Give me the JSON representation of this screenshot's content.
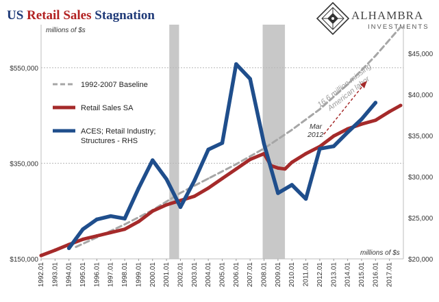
{
  "title": {
    "part1": "US ",
    "part2": "Retail Sales",
    "part3": " Stagnation",
    "color_main": "#1f3a78",
    "color_accent": "#b22222"
  },
  "logo": {
    "name": "ALHAMBRA",
    "sub": "INVESTMENTS",
    "icon": "diamond-lattice-icon"
  },
  "annotations": {
    "unit_left": "millions of $s",
    "unit_bottom": "millions of $s",
    "missing_line1": "16.6 million missing",
    "missing_line2": "American labor",
    "mar_line1": "Mar",
    "mar_line2": "2012"
  },
  "chart_data": {
    "type": "line",
    "x_categories": [
      "1992.01",
      "1993.01",
      "1994.01",
      "1995.01",
      "1996.01",
      "1997.01",
      "1998.01",
      "1999.01",
      "2000.01",
      "2001.01",
      "2002.01",
      "2003.01",
      "2004.01",
      "2005.01",
      "2006.01",
      "2007.01",
      "2008.01",
      "2009.01",
      "2010.01",
      "2011.01",
      "2012.01",
      "2013.01",
      "2014.01",
      "2015.01",
      "2016.01",
      "2017.01"
    ],
    "y_left": {
      "ticks": [
        150000,
        350000,
        550000
      ],
      "tick_labels": [
        "$150,000",
        "$350,000",
        "$550,000"
      ],
      "range": [
        150000,
        640000
      ]
    },
    "y_right": {
      "ticks": [
        20000,
        25000,
        30000,
        35000,
        40000,
        45000
      ],
      "tick_labels": [
        "$20,000",
        "$25,000",
        "$30,000",
        "$35,000",
        "$40,000",
        "$45,000"
      ],
      "range": [
        20000,
        48500
      ]
    },
    "recessions": [
      [
        2001.2,
        2001.9
      ],
      [
        2007.9,
        2009.5
      ]
    ],
    "legend": [
      {
        "label": "1992-2007 Baseline",
        "color": "#a6a6a6",
        "style": "dashed"
      },
      {
        "label": "Retail Sales SA",
        "color": "#a52a2a",
        "style": "solid"
      },
      {
        "label": "ACES; Retail Industry; Structures - RHS",
        "label_line1": "ACES; Retail Industry;",
        "label_line2": "Structures - RHS",
        "color": "#1f4e8c",
        "style": "solid"
      }
    ],
    "series": [
      {
        "name": "1992-2007 Baseline",
        "axis": "left",
        "x": [
          1994.5,
          1996,
          1998,
          2000,
          2002,
          2004,
          2006,
          2008,
          2010,
          2012,
          2014,
          2016,
          2017.8
        ],
        "values": [
          175000,
          195000,
          222000,
          252000,
          288000,
          318000,
          348000,
          381000,
          420000,
          463000,
          515000,
          575000,
          635000
        ]
      },
      {
        "name": "Retail Sales SA",
        "axis": "left",
        "x": [
          1992.0,
          1993,
          1994,
          1995,
          1996,
          1997,
          1998,
          1999,
          2000,
          2001,
          2002,
          2003,
          2004,
          2005,
          2006,
          2007,
          2008,
          2008.5,
          2009.0,
          2009.5,
          2010,
          2011,
          2012,
          2013,
          2014,
          2015,
          2016,
          2017,
          2017.8
        ],
        "values": [
          157000,
          168000,
          180000,
          191000,
          198000,
          205000,
          212000,
          228000,
          250000,
          263000,
          272000,
          281000,
          298000,
          318000,
          338000,
          358000,
          370000,
          345000,
          340000,
          338000,
          352000,
          370000,
          385000,
          407000,
          422000,
          432000,
          440000,
          458000,
          471000
        ]
      },
      {
        "name": "ACES; Retail Industry; Structures - RHS",
        "axis": "right",
        "x": [
          1994,
          1995,
          1996,
          1997,
          1998,
          1999,
          2000,
          2001,
          2002,
          2003,
          2004,
          2005,
          2006,
          2007,
          2008,
          2009,
          2010,
          2011,
          2012,
          2013,
          2014,
          2015,
          2016
        ],
        "values": [
          21300,
          23600,
          24800,
          25200,
          24900,
          28600,
          32000,
          29700,
          26300,
          29500,
          33300,
          34100,
          43700,
          41900,
          34000,
          28000,
          29000,
          27300,
          33400,
          33700,
          35400,
          37000,
          39000
        ]
      }
    ]
  }
}
